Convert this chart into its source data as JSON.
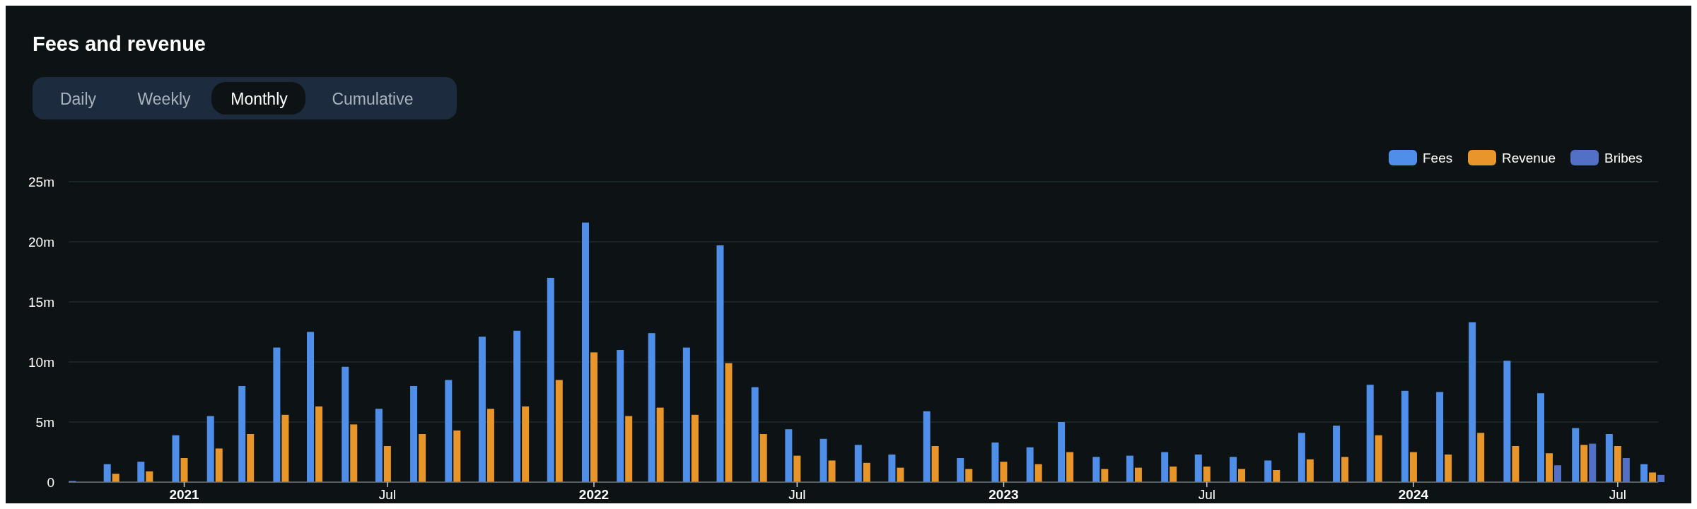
{
  "chart_data": {
    "type": "bar",
    "title": "Fees and revenue",
    "annotations": [
      "Daily",
      "Weekly",
      "Monthly",
      "Cumulative"
    ],
    "x": [
      "2020-10",
      "2020-11",
      "2020-12",
      "2021-01",
      "2021-02",
      "2021-03",
      "2021-04",
      "2021-05",
      "2021-06",
      "2021-07",
      "2021-08",
      "2021-09",
      "2021-10",
      "2021-11",
      "2021-12",
      "2022-01",
      "2022-02",
      "2022-03",
      "2022-04",
      "2022-05",
      "2022-06",
      "2022-07",
      "2022-08",
      "2022-09",
      "2022-10",
      "2022-11",
      "2022-12",
      "2023-01",
      "2023-02",
      "2023-03",
      "2023-04",
      "2023-05",
      "2023-06",
      "2023-07",
      "2023-08",
      "2023-09",
      "2023-10",
      "2023-11",
      "2023-12",
      "2024-01",
      "2024-02",
      "2024-03",
      "2024-04",
      "2024-05",
      "2024-06",
      "2024-07",
      "2024-08"
    ],
    "series": [
      {
        "name": "Fees",
        "color": "#4f8fea",
        "values": [
          0.1,
          1.5,
          1.7,
          3.9,
          5.5,
          8.0,
          11.2,
          12.5,
          9.6,
          6.1,
          8.0,
          8.5,
          12.1,
          12.6,
          17.0,
          21.6,
          11.0,
          12.4,
          11.2,
          19.7,
          7.9,
          4.4,
          3.6,
          3.1,
          2.3,
          5.9,
          2.0,
          3.3,
          2.9,
          5.0,
          2.1,
          2.2,
          2.5,
          2.3,
          2.1,
          1.8,
          4.1,
          4.7,
          8.1,
          7.6,
          7.5,
          13.3,
          10.1,
          7.4,
          4.5,
          4.0,
          1.5
        ]
      },
      {
        "name": "Revenue",
        "color": "#e8962a",
        "values": [
          0.0,
          0.7,
          0.9,
          2.0,
          2.8,
          4.0,
          5.6,
          6.3,
          4.8,
          3.0,
          4.0,
          4.3,
          6.1,
          6.3,
          8.5,
          10.8,
          5.5,
          6.2,
          5.6,
          9.9,
          4.0,
          2.2,
          1.8,
          1.6,
          1.2,
          3.0,
          1.1,
          1.7,
          1.5,
          2.5,
          1.1,
          1.2,
          1.3,
          1.3,
          1.1,
          1.0,
          1.9,
          2.1,
          3.9,
          2.5,
          2.3,
          4.1,
          3.0,
          2.4,
          3.1,
          3.0,
          0.8
        ]
      },
      {
        "name": "Bribes",
        "color": "#5470c6",
        "values": [
          null,
          null,
          null,
          null,
          null,
          null,
          null,
          null,
          null,
          null,
          null,
          null,
          null,
          null,
          null,
          null,
          null,
          null,
          null,
          null,
          null,
          null,
          null,
          null,
          null,
          null,
          null,
          null,
          null,
          null,
          null,
          null,
          null,
          null,
          null,
          null,
          null,
          null,
          null,
          null,
          null,
          null,
          null,
          1.4,
          3.2,
          2.0,
          0.6
        ]
      }
    ],
    "xlim": [
      "2020-09-20",
      "2024-08-06"
    ],
    "xticks": [
      {
        "value": "2021-01",
        "label": "2021"
      },
      {
        "value": "2021-07",
        "label": "Jul"
      },
      {
        "value": "2022-01",
        "label": "2022"
      },
      {
        "value": "2022-07",
        "label": "Jul"
      },
      {
        "value": "2023-01",
        "label": "2023"
      },
      {
        "value": "2023-07",
        "label": "Jul"
      },
      {
        "value": "2024-01",
        "label": "2024"
      },
      {
        "value": "2024-07",
        "label": "Jul"
      }
    ],
    "ylim": [
      0,
      25
    ],
    "yticks": [
      0,
      {
        "value": 5,
        "label": "5m"
      },
      {
        "value": 10,
        "label": "10m"
      },
      {
        "value": 15,
        "label": "15m"
      },
      {
        "value": 20,
        "label": "20m"
      },
      {
        "value": 25,
        "label": "25m"
      }
    ],
    "grid": "y",
    "legend": "top right"
  }
}
